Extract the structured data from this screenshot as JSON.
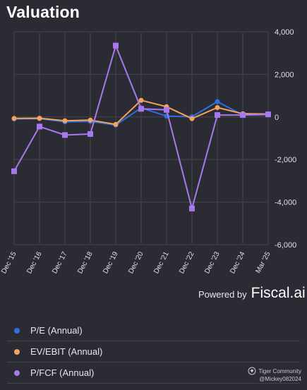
{
  "header": {
    "title": "Valuation"
  },
  "chart_data": {
    "type": "line",
    "title": "Valuation",
    "categories": [
      "Dec '15",
      "Dec '16",
      "Dec '17",
      "Dec '18",
      "Dec '19",
      "Dec '20",
      "Dec '21",
      "Dec '22",
      "Dec '23",
      "Dec '24",
      "Mar '25"
    ],
    "ylim": [
      -6000,
      4000
    ],
    "yticks": [
      4000,
      2000,
      0,
      -2000,
      -4000,
      -6000
    ],
    "ytick_labels": [
      "4,000",
      "2,000",
      "0",
      "-2,000",
      "-4,000",
      "-6,000"
    ],
    "grid": true,
    "series": [
      {
        "name": "P/E (Annual)",
        "color": "#2f6fe0",
        "marker": "circle",
        "values": [
          -100,
          -80,
          -230,
          -210,
          -380,
          420,
          40,
          10,
          720,
          90,
          110
        ]
      },
      {
        "name": "EV/EBIT (Annual)",
        "color": "#f2a35e",
        "marker": "circle",
        "values": [
          -70,
          -60,
          -180,
          -150,
          -350,
          780,
          480,
          -80,
          440,
          150,
          140
        ]
      },
      {
        "name": "P/FCF (Annual)",
        "color": "#a878ee",
        "marker": "square",
        "values": [
          -2550,
          -450,
          -850,
          -800,
          3350,
          380,
          330,
          -4300,
          90,
          90,
          120
        ]
      }
    ]
  },
  "footer": {
    "powered_by": "Powered by",
    "brand": "Fiscal.ai"
  },
  "legend": [
    {
      "label": "P/E (Annual)",
      "color": "#2f6fe0"
    },
    {
      "label": "EV/EBIT (Annual)",
      "color": "#f2a35e"
    },
    {
      "label": "P/FCF (Annual)",
      "color": "#a878ee"
    }
  ],
  "watermark": {
    "community": "Tiger Community",
    "handle": "@Mickey082024"
  }
}
